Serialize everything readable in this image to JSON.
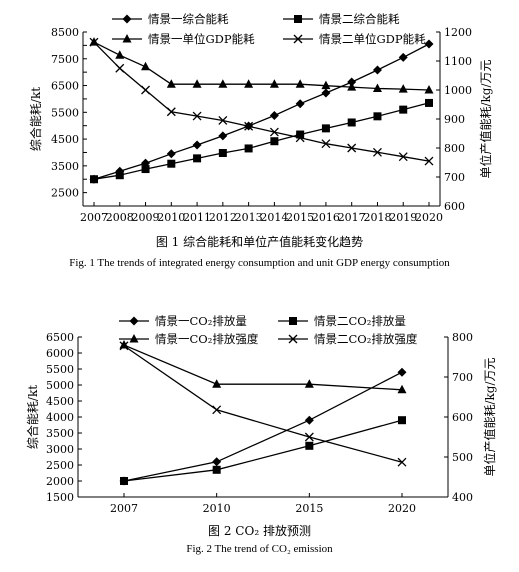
{
  "figure1": {
    "caption_cn": "图 1    综合能耗和单位产值能耗变化趋势",
    "caption_en": "Fig. 1    The trends of integrated energy consumption and unit GDP energy consumption",
    "chart_data": {
      "type": "line",
      "x": [
        "2007",
        "2008",
        "2009",
        "2010",
        "2011",
        "2012",
        "2013",
        "2014",
        "2015",
        "2016",
        "2017",
        "2018",
        "2019",
        "2020"
      ],
      "ylabel_left": "综合能耗/kt",
      "ylabel_right": "单位产值能耗/kg/万元",
      "ylim_left": [
        2000,
        8500
      ],
      "yticks_left": [
        "2000",
        "2500",
        "3000",
        "3500",
        "4000",
        "4500",
        "5000",
        "5500",
        "6000",
        "6500",
        "7000",
        "7500",
        "8000",
        "8500"
      ],
      "yticks_left_labeled": [
        "2500",
        "3500",
        "4500",
        "5500",
        "6500",
        "7500",
        "8500"
      ],
      "ylim_right": [
        600,
        1200
      ],
      "yticks_right": [
        "600",
        "700",
        "800",
        "900",
        "1000",
        "1100",
        "1200"
      ],
      "grid": false,
      "legend": "top",
      "series": [
        {
          "name": "情景一综合能耗",
          "axis": "left",
          "marker": "diamond",
          "values": [
            3000,
            3300,
            3600,
            3950,
            4280,
            4620,
            4990,
            5380,
            5820,
            6220,
            6630,
            7080,
            7550,
            8050
          ]
        },
        {
          "name": "情景二综合能耗",
          "axis": "left",
          "marker": "square",
          "values": [
            3000,
            3150,
            3380,
            3580,
            3780,
            3980,
            4150,
            4420,
            4670,
            4900,
            5120,
            5350,
            5600,
            5850
          ]
        },
        {
          "name": "情景一单位GDP能耗",
          "axis": "right",
          "marker": "triangle",
          "values": [
            1165,
            1120,
            1080,
            1020,
            1020,
            1020,
            1020,
            1020,
            1020,
            1015,
            1010,
            1005,
            1003,
            1000
          ]
        },
        {
          "name": "情景二单位GDP能耗",
          "axis": "right",
          "marker": "cross",
          "values": [
            1165,
            1075,
            1000,
            925,
            910,
            895,
            875,
            855,
            835,
            815,
            800,
            785,
            770,
            755
          ]
        }
      ]
    }
  },
  "figure2": {
    "caption_cn": "图 2    CO₂ 排放预测",
    "caption_en": "Fig. 2    The trend of CO₂ emission",
    "chart_data": {
      "type": "line",
      "x": [
        "2007",
        "2010",
        "2015",
        "2020"
      ],
      "ylabel_left": "综合能耗/kt",
      "ylabel_right": "单位产值能耗/kg/万元",
      "ylim_left": [
        1500,
        6500
      ],
      "yticks_left": [
        "1500",
        "2000",
        "2500",
        "3000",
        "3500",
        "4000",
        "4500",
        "5000",
        "5500",
        "6000",
        "6500"
      ],
      "ylim_right": [
        400,
        800
      ],
      "yticks_right": [
        "400",
        "500",
        "600",
        "700",
        "800"
      ],
      "grid": false,
      "legend": "top",
      "series": [
        {
          "name": "情景一CO₂排放量",
          "axis": "left",
          "marker": "diamond",
          "values": [
            2000,
            2600,
            3900,
            5400
          ]
        },
        {
          "name": "情景二CO₂排放量",
          "axis": "left",
          "marker": "square",
          "values": [
            2000,
            2350,
            3100,
            3900
          ]
        },
        {
          "name": "情景一CO₂排放强度",
          "axis": "right",
          "marker": "triangle",
          "values": [
            780,
            682,
            682,
            668
          ]
        },
        {
          "name": "情景二CO₂排放强度",
          "axis": "right",
          "marker": "cross",
          "values": [
            778,
            618,
            550,
            487
          ]
        }
      ]
    }
  }
}
